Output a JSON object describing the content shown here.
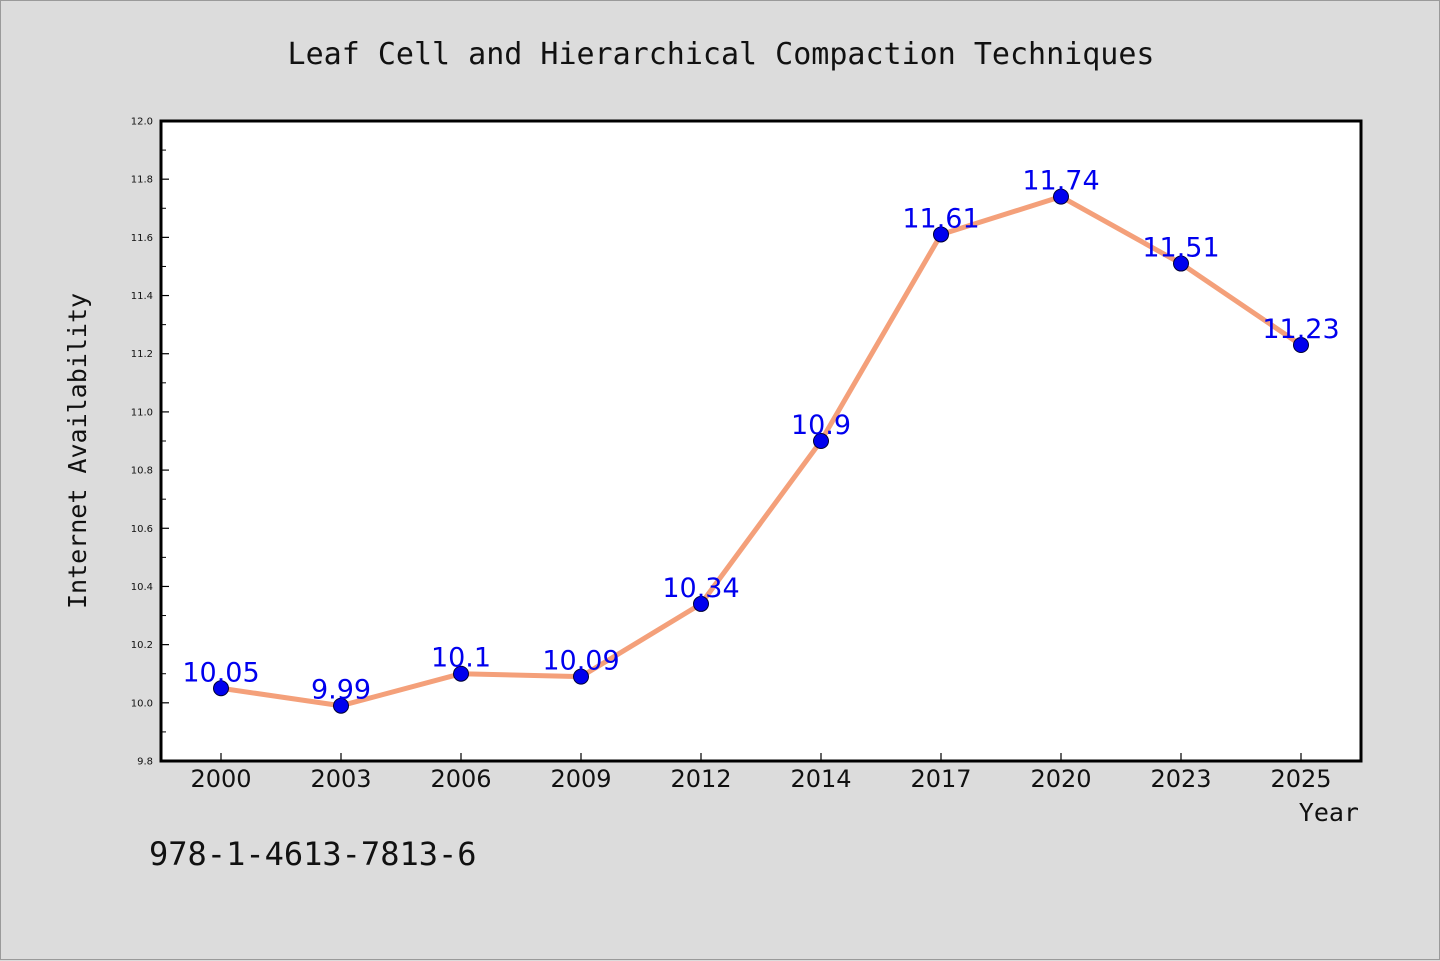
{
  "chart_data": {
    "type": "line",
    "title": "Leaf Cell and Hierarchical Compaction Techniques",
    "xlabel": "Year",
    "ylabel": "Internet Availability",
    "categories": [
      "2000",
      "2003",
      "2006",
      "2009",
      "2012",
      "2014",
      "2017",
      "2020",
      "2023",
      "2025"
    ],
    "values": [
      10.05,
      9.99,
      10.1,
      10.09,
      10.34,
      10.9,
      11.61,
      11.74,
      11.51,
      11.23
    ],
    "data_labels": [
      "10.05",
      "9.99",
      "10.1",
      "10.09",
      "10.34",
      "10.9",
      "11.61",
      "11.74",
      "11.51",
      "11.23"
    ],
    "ylim": [
      9.8,
      12.0
    ],
    "yticks": [
      "9.8",
      "10.0",
      "10.2",
      "10.4",
      "10.6",
      "10.8",
      "11.0",
      "11.2",
      "11.4",
      "11.6",
      "11.8",
      "12.0"
    ],
    "grid": false,
    "legend": "none",
    "colors": {
      "line": "#f4a07a",
      "marker": "#0000ee",
      "label": "#0000ee",
      "background": "#dcdcdc",
      "plot_area": "#ffffff"
    }
  },
  "footer": {
    "isbn": "978-1-4613-7813-6"
  }
}
